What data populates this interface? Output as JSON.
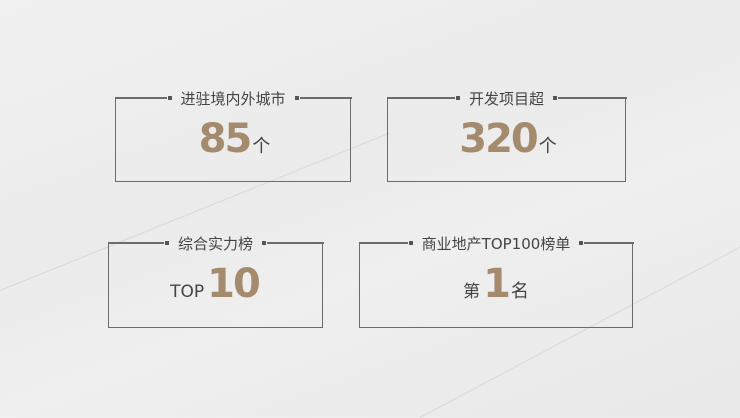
{
  "cards": [
    {
      "title": "进驻境内外城市",
      "prefix": "",
      "value": "85",
      "unit": "个"
    },
    {
      "title": "开发项目超",
      "prefix": "",
      "value": "320",
      "unit": "个"
    },
    {
      "title": "综合实力榜",
      "prefix": "TOP",
      "value": "10",
      "unit": ""
    },
    {
      "title": "商业地产TOP100榜单",
      "prefix": "第",
      "value": "1",
      "unit": "名"
    }
  ],
  "colors": {
    "accent": "#a48b6e",
    "border": "#6b6b6b",
    "text": "#444444"
  }
}
